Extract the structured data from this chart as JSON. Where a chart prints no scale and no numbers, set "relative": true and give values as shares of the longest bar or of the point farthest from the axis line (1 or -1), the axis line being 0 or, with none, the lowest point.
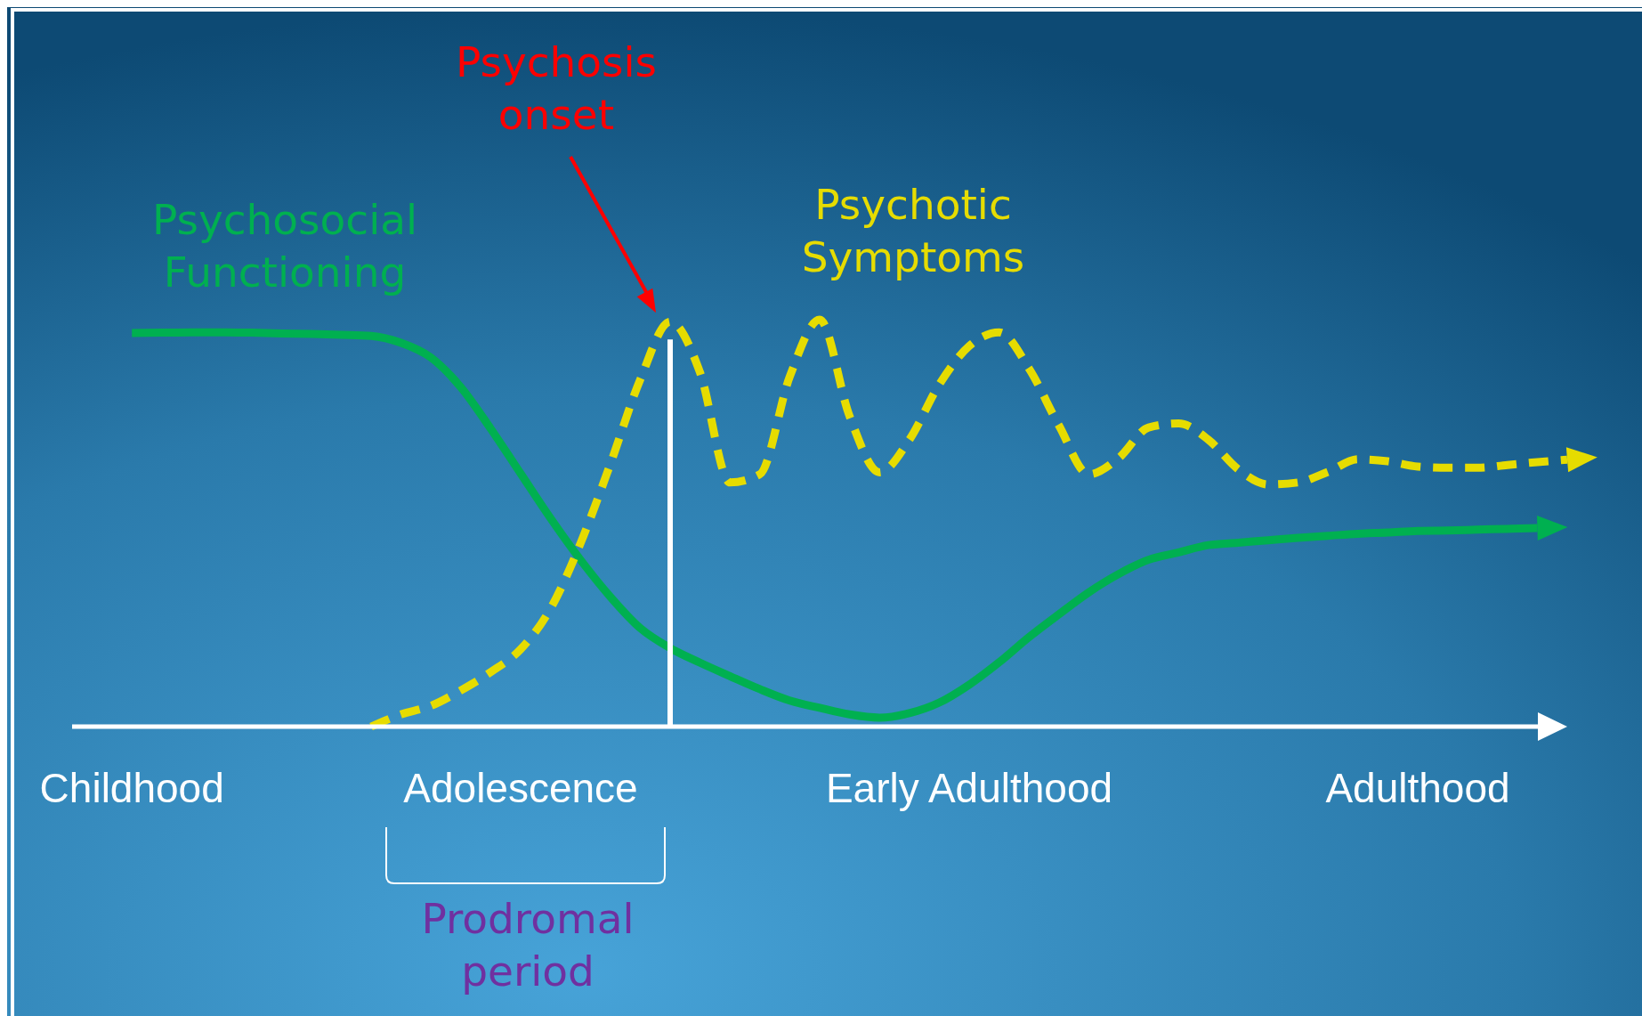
{
  "chart_data": {
    "type": "line",
    "relative": true,
    "categories": [
      null,
      null,
      "Childhood",
      null,
      null,
      null,
      null,
      null,
      null,
      null,
      null,
      null,
      null,
      null,
      null,
      "Adolescence",
      null,
      null,
      null,
      null,
      null,
      null,
      null,
      null,
      null,
      null,
      null,
      null,
      null,
      null,
      "Early Adulthood",
      null,
      null,
      null,
      null,
      null,
      null,
      null,
      null,
      null,
      null,
      null,
      null,
      null,
      null,
      "Adulthood",
      null,
      null,
      null,
      null,
      null
    ],
    "series": [
      {
        "name": "Psychosocial Functioning",
        "color": "#00b050",
        "line_style": "solid",
        "values": [
          null,
          null,
          0.967,
          0.968,
          0.969,
          0.969,
          0.968,
          0.966,
          0.965,
          0.963,
          0.96,
          0.943,
          0.907,
          0.834,
          0.732,
          0.622,
          0.512,
          0.41,
          0.319,
          0.242,
          0.193,
          0.157,
          0.124,
          0.092,
          0.064,
          0.046,
          0.03,
          0.022,
          0.033,
          0.059,
          0.103,
          0.158,
          0.22,
          0.276,
          0.33,
          0.375,
          0.41,
          0.428,
          0.446,
          0.452,
          0.458,
          0.464,
          0.469,
          0.474,
          0.477,
          0.481,
          0.482,
          0.484,
          0.486,
          0.488,
          null
        ]
      },
      {
        "name": "Psychotic Symptoms",
        "color": "#e6dc00",
        "line_style": "dashed",
        "values": [
          null,
          null,
          null,
          null,
          null,
          null,
          null,
          null,
          null,
          null,
          0,
          0.03,
          0.051,
          0.089,
          0.134,
          0.19,
          0.29,
          0.45,
          0.645,
          0.853,
          0.995,
          0.87,
          0.6,
          0.62,
          0.86,
          1,
          0.763,
          0.625,
          0.705,
          0.841,
          0.935,
          0.969,
          0.88,
          0.74,
          0.62,
          0.66,
          0.735,
          0.745,
          0.705,
          0.632,
          0.595,
          0.6,
          0.626,
          0.657,
          0.652,
          0.639,
          0.636,
          0.636,
          0.643,
          0.65,
          0.656
        ]
      }
    ],
    "annotations": [
      "Psychosis onset",
      "Prodromal period"
    ]
  }
}
